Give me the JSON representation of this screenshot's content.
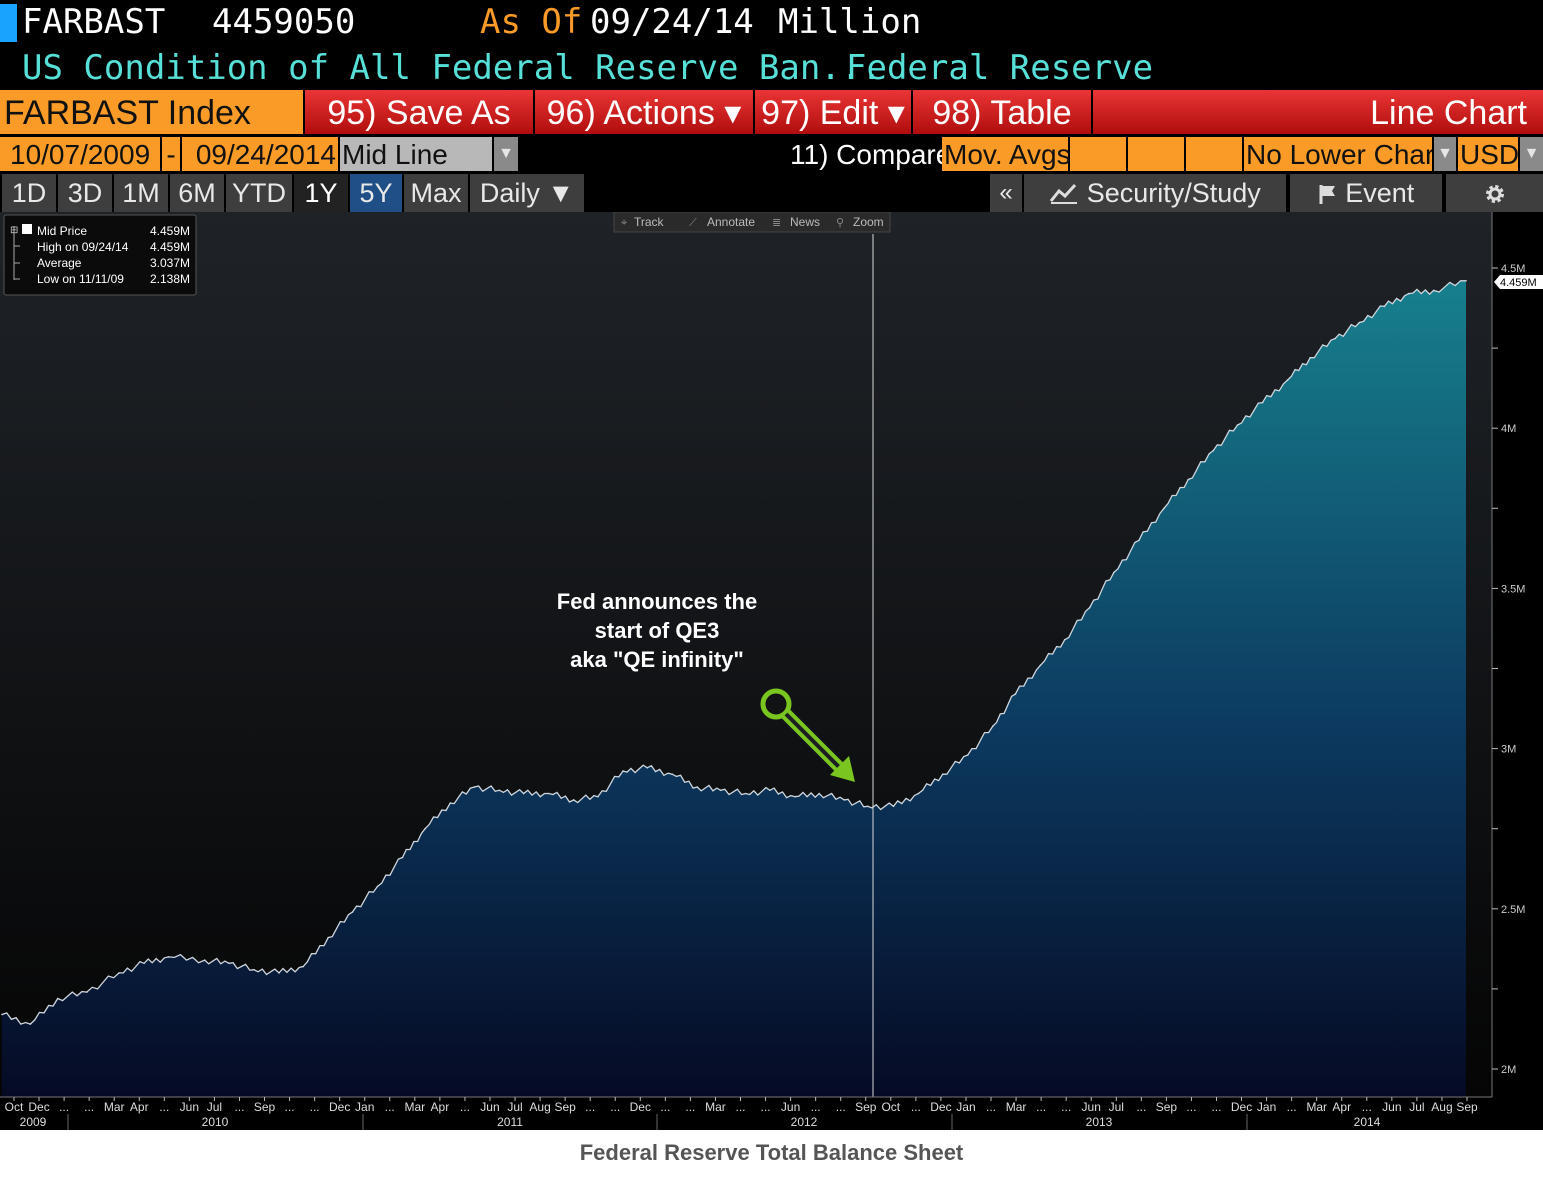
{
  "header": {
    "ticker": "FARBAST",
    "value": "4459050",
    "as_of_label": "As Of",
    "as_of_date": "09/24/14",
    "unit": "Million",
    "description": "US Condition of All Federal Reserve Ban...",
    "source": "Federal Reserve"
  },
  "toolbar": {
    "index_label": "FARBAST Index",
    "buttons": [
      "95) Save As",
      "96) Actions ▾",
      "97) Edit ▾",
      "98) Table"
    ],
    "chart_type": "Line Chart"
  },
  "settings": {
    "start_date": "10/07/2009",
    "separator": "-",
    "end_date": "09/24/2014",
    "line_mode": "Mid Line",
    "compare_label": "11) Compare",
    "mov_avgs": "Mov. Avgs",
    "lower_chart": "No Lower Chart",
    "currency": "USD"
  },
  "ranges": [
    "1D",
    "3D",
    "1M",
    "6M",
    "YTD",
    "1Y",
    "5Y",
    "Max",
    "Daily ▼"
  ],
  "selected_range": "5Y",
  "panel": {
    "collapse": "«",
    "security_study": "Security/Study",
    "event": "Event"
  },
  "chart_tools": [
    "Track",
    "Annotate",
    "News",
    "Zoom"
  ],
  "legend": [
    {
      "label": "Mid Price",
      "value": "4.459M"
    },
    {
      "label": "High on 09/24/14",
      "value": "4.459M"
    },
    {
      "label": "Average",
      "value": "3.037M"
    },
    {
      "label": "Low on 11/11/09",
      "value": "2.138M"
    }
  ],
  "annotation": {
    "lines": [
      "Fed announces the",
      "start of QE3",
      "aka \"QE infinity\""
    ],
    "arrow_color": "#7ac520",
    "target_date": "2012-09-13"
  },
  "last_value_label": "4.459M",
  "caption": "Federal Reserve Total Balance Sheet",
  "colors": {
    "area_top": "#17818e",
    "area_bottom": "#050a24",
    "orange": "#fb9b27",
    "red": "#c8141a",
    "teal_text": "#56e0d8",
    "selected_tab": "#1f4f86"
  },
  "chart_data": {
    "type": "area",
    "title": "",
    "xlabel": "",
    "ylabel": "",
    "ylim": [
      1.95,
      4.6
    ],
    "y_ticks": [
      "2M",
      "2.5M",
      "3M",
      "3.5M",
      "4M",
      "4.5M"
    ],
    "y_tick_values": [
      2.0,
      2.5,
      3.0,
      3.5,
      4.0,
      4.5
    ],
    "x_month_labels": [
      "Oct",
      "Dec",
      "...",
      "...",
      "Mar",
      "Apr",
      "...",
      "Jun",
      "Jul",
      "...",
      "Sep",
      "...",
      "...",
      "Dec",
      "Jan",
      "...",
      "Mar",
      "Apr",
      "...",
      "Jun",
      "Jul",
      "Aug",
      "Sep",
      "...",
      "...",
      "Dec",
      "...",
      "...",
      "Mar",
      "...",
      "...",
      "Jun",
      "...",
      "...",
      "Sep",
      "Oct",
      "...",
      "Dec",
      "Jan",
      "...",
      "Mar",
      "...",
      "...",
      "Jun",
      "Jul",
      "...",
      "Sep",
      "...",
      "...",
      "Dec",
      "Jan",
      "...",
      "Mar",
      "Apr",
      "...",
      "Jun",
      "Jul",
      "Aug",
      "Sep"
    ],
    "x_year_labels": [
      "2009",
      "2010",
      "2011",
      "2012",
      "2013",
      "2014"
    ],
    "series": [
      {
        "name": "Mid Price",
        "x": [
          "2009-10-07",
          "2009-11-11",
          "2009-12-15",
          "2010-01-20",
          "2010-03-01",
          "2010-04-01",
          "2010-05-01",
          "2010-06-15",
          "2010-07-15",
          "2010-08-15",
          "2010-09-15",
          "2010-10-15",
          "2010-11-15",
          "2010-12-15",
          "2011-01-15",
          "2011-02-15",
          "2011-03-15",
          "2011-04-15",
          "2011-05-15",
          "2011-06-15",
          "2011-07-15",
          "2011-08-15",
          "2011-09-15",
          "2011-10-15",
          "2011-11-15",
          "2011-12-15",
          "2012-01-15",
          "2012-02-15",
          "2012-03-15",
          "2012-04-15",
          "2012-05-15",
          "2012-06-15",
          "2012-07-15",
          "2012-08-15",
          "2012-09-13",
          "2012-10-15",
          "2012-11-15",
          "2012-12-15",
          "2013-01-15",
          "2013-02-15",
          "2013-03-15",
          "2013-04-15",
          "2013-05-15",
          "2013-06-15",
          "2013-07-15",
          "2013-08-15",
          "2013-09-15",
          "2013-10-15",
          "2013-11-15",
          "2013-12-15",
          "2014-01-15",
          "2014-02-15",
          "2014-03-15",
          "2014-04-15",
          "2014-05-15",
          "2014-06-15",
          "2014-07-15",
          "2014-08-15",
          "2014-09-24"
        ],
        "y": [
          2.17,
          2.14,
          2.22,
          2.24,
          2.3,
          2.33,
          2.35,
          2.34,
          2.33,
          2.31,
          2.3,
          2.32,
          2.41,
          2.49,
          2.57,
          2.66,
          2.75,
          2.83,
          2.88,
          2.87,
          2.86,
          2.86,
          2.84,
          2.85,
          2.93,
          2.94,
          2.92,
          2.88,
          2.87,
          2.86,
          2.87,
          2.85,
          2.86,
          2.84,
          2.82,
          2.82,
          2.86,
          2.92,
          2.98,
          3.07,
          3.17,
          3.26,
          3.34,
          3.44,
          3.55,
          3.65,
          3.75,
          3.84,
          3.93,
          4.01,
          4.08,
          4.15,
          4.22,
          4.28,
          4.33,
          4.38,
          4.42,
          4.43,
          4.46
        ]
      }
    ]
  }
}
